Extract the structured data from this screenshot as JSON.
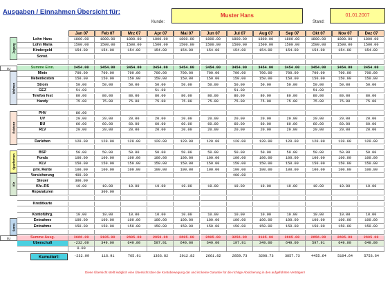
{
  "header": {
    "title": "Ausgaben / Einnahmen Übersicht für:",
    "kunde_label": "Kunde:",
    "kunde_value": "Muster Hans",
    "stand_label": "Stand:",
    "stand_value": "01.01.2007"
  },
  "months": [
    "Jan 07",
    "Feb 07",
    "Mrz 07",
    "Apr 07",
    "Mai 07",
    "Jun 07",
    "Jul 07",
    "Aug 07",
    "Sep 07",
    "Okt 07",
    "Nov 07",
    "Dez 07"
  ],
  "groups": [
    {
      "label": "Zugang",
      "color": "#c6efce",
      "start": 0,
      "count": 4
    },
    {
      "label": "Wohnen",
      "color": "#dbe5f1",
      "start": 6,
      "count": 6
    },
    {
      "label": "Existenz",
      "color": "#fce4d6",
      "start": 13,
      "count": 6
    },
    {
      "label": "Sparformen",
      "color": "#ffff99",
      "start": 20,
      "count": 4
    },
    {
      "label": "Kfz",
      "color": "#d9ead3",
      "start": 24,
      "count": 4
    },
    {
      "label": "Sonst.",
      "color": "#bdd7ee",
      "start": 32,
      "count": 3
    }
  ],
  "side_labels": {
    "su1": "SU",
    "su2": "SU",
    "ueberschuss": "Überschuß",
    "kumuliert": "Kumuliert:"
  },
  "rows": [
    {
      "label": "Lohn Hans",
      "values": [
        "1800.00",
        "1800.00",
        "1800.00",
        "1800.00",
        "1800.00",
        "1800.00",
        "1800.00",
        "1800.00",
        "1800.00",
        "1800.00",
        "1800.00",
        "1800.00"
      ]
    },
    {
      "label": "Lohn Maria",
      "values": [
        "1500.00",
        "1500.00",
        "1500.00",
        "1500.00",
        "1500.00",
        "1500.00",
        "1500.00",
        "1500.00",
        "1500.00",
        "1500.00",
        "1500.00",
        "1500.00"
      ]
    },
    {
      "label": "Kindergeld",
      "values": [
        "154.00",
        "154.00",
        "154.00",
        "154.00",
        "154.00",
        "154.00",
        "154.00",
        "154.00",
        "154.00",
        "154.00",
        "154.00",
        "154.00"
      ]
    },
    {
      "label": "Sonst.",
      "values": [
        "",
        "",
        "",
        "",
        "",
        "",
        "",
        "",
        "",
        "",
        "",
        ""
      ]
    },
    {
      "label": "",
      "values": [
        "",
        "",
        "",
        "",
        "",
        "",
        "",
        "",
        "",
        "",
        "",
        ""
      ]
    },
    {
      "label": "Summe Einn.",
      "kind": "sum-in",
      "values": [
        "3454.00",
        "3454.00",
        "3454.00",
        "3454.00",
        "3454.00",
        "3454.00",
        "3454.00",
        "3454.00",
        "3454.00",
        "3454.00",
        "3454.00",
        "3454.00"
      ]
    },
    {
      "label": "Miete",
      "values": [
        "700.00",
        "700.00",
        "700.00",
        "700.00",
        "700.00",
        "700.00",
        "700.00",
        "700.00",
        "700.00",
        "700.00",
        "700.00",
        "700.00"
      ]
    },
    {
      "label": "Nebenkosten",
      "values": [
        "150.00",
        "150.00",
        "150.00",
        "150.00",
        "150.00",
        "150.00",
        "150.00",
        "150.00",
        "150.00",
        "150.00",
        "150.00",
        "150.00"
      ]
    },
    {
      "label": "Strom",
      "values": [
        "50.00",
        "50.00",
        "50.00",
        "50.00",
        "50.00",
        "50.00",
        "50.00",
        "50.00",
        "50.00",
        "50.00",
        "50.00",
        "50.00"
      ]
    },
    {
      "label": "GEZ",
      "values": [
        "51.09",
        "",
        "",
        "51.09",
        "",
        "",
        "51.09",
        "",
        "",
        "51.09",
        "",
        ""
      ]
    },
    {
      "label": "Telefon fest",
      "values": [
        "80.00",
        "80.00",
        "80.00",
        "80.00",
        "80.00",
        "80.00",
        "80.00",
        "80.00",
        "80.00",
        "80.00",
        "80.00",
        "80.00"
      ]
    },
    {
      "label": "Handy",
      "values": [
        "75.00",
        "75.00",
        "75.00",
        "75.00",
        "75.00",
        "75.00",
        "75.00",
        "75.00",
        "75.00",
        "75.00",
        "75.00",
        "75.00"
      ]
    },
    {
      "label": "",
      "values": [
        "",
        "",
        "",
        "",
        "",
        "",
        "",
        "",
        "",
        "",
        "",
        ""
      ]
    },
    {
      "label": "PHV",
      "values": [
        "80.00",
        "",
        "",
        "",
        "",
        "",
        "",
        "",
        "",
        "",
        "",
        ""
      ]
    },
    {
      "label": "UV",
      "values": [
        "20.00",
        "20.00",
        "20.00",
        "20.00",
        "20.00",
        "20.00",
        "20.00",
        "20.00",
        "20.00",
        "20.00",
        "20.00",
        "20.00"
      ]
    },
    {
      "label": "BU",
      "values": [
        "60.00",
        "60.00",
        "60.00",
        "60.00",
        "60.00",
        "60.00",
        "60.00",
        "60.00",
        "60.00",
        "60.00",
        "60.00",
        "60.00"
      ]
    },
    {
      "label": "RLV",
      "values": [
        "20.00",
        "20.00",
        "20.00",
        "20.00",
        "20.00",
        "20.00",
        "20.00",
        "20.00",
        "20.00",
        "20.00",
        "20.00",
        "20.00"
      ]
    },
    {
      "label": "",
      "values": [
        "",
        "",
        "",
        "",
        "",
        "",
        "",
        "",
        "",
        "",
        "",
        ""
      ]
    },
    {
      "label": "Darlehen",
      "values": [
        "120.00",
        "120.00",
        "120.00",
        "120.00",
        "120.00",
        "120.00",
        "120.00",
        "120.00",
        "120.00",
        "120.00",
        "120.00",
        "120.00"
      ]
    },
    {
      "label": "",
      "values": [
        "",
        "",
        "",
        "",
        "",
        "",
        "",
        "",
        "",
        "",
        "",
        ""
      ]
    },
    {
      "label": "BSP",
      "values": [
        "50.00",
        "50.00",
        "50.00",
        "50.00",
        "50.00",
        "50.00",
        "50.00",
        "50.00",
        "50.00",
        "50.00",
        "50.00",
        "50.00"
      ]
    },
    {
      "label": "Fonds",
      "values": [
        "100.00",
        "100.00",
        "100.00",
        "100.00",
        "100.00",
        "100.00",
        "100.00",
        "100.00",
        "100.00",
        "100.00",
        "100.00",
        "100.00"
      ]
    },
    {
      "label": "KLV",
      "values": [
        "150.00",
        "150.00",
        "150.00",
        "150.00",
        "150.00",
        "150.00",
        "150.00",
        "150.00",
        "150.00",
        "150.00",
        "150.00",
        "150.00"
      ]
    },
    {
      "label": "priv. Rente",
      "values": [
        "100.00",
        "100.00",
        "100.00",
        "100.00",
        "100.00",
        "100.00",
        "100.00",
        "100.00",
        "100.00",
        "100.00",
        "100.00",
        "100.00"
      ]
    },
    {
      "label": "Versicherung",
      "values": [
        "400.00",
        "",
        "",
        "",
        "",
        "",
        "400.00",
        "",
        "",
        "",
        "",
        ""
      ]
    },
    {
      "label": "Steuer",
      "values": [
        "300.00",
        "",
        "",
        "",
        "",
        "",
        "",
        "",
        "",
        "",
        "",
        ""
      ]
    },
    {
      "label": "Kfz.-RS",
      "values": [
        "19.00",
        "19.00",
        "19.00",
        "19.00",
        "19.00",
        "19.00",
        "19.00",
        "19.00",
        "19.00",
        "19.00",
        "19.00",
        "19.00"
      ]
    },
    {
      "label": "Reparaturen",
      "values": [
        "",
        "300.00",
        "",
        "",
        "",
        "",
        "",
        "",
        "",
        "",
        "",
        ""
      ]
    },
    {
      "label": "",
      "values": [
        "",
        "",
        "",
        "",
        "",
        "",
        "",
        "",
        "",
        "",
        "",
        ""
      ]
    },
    {
      "label": "Kreditkarte",
      "values": [
        "",
        "",
        "",
        "",
        "",
        "",
        "",
        "",
        "",
        "",
        "",
        ""
      ]
    },
    {
      "label": "",
      "values": [
        "",
        "",
        "",
        "",
        "",
        "",
        "",
        "",
        "",
        "",
        "",
        ""
      ]
    },
    {
      "label": "Kontoführg.",
      "values": [
        "10.00",
        "10.00",
        "10.00",
        "10.00",
        "10.00",
        "10.00",
        "10.00",
        "10.00",
        "10.00",
        "10.00",
        "10.00",
        "10.00"
      ]
    },
    {
      "label": "Entnahme",
      "values": [
        "100.00",
        "100.00",
        "100.00",
        "100.00",
        "100.00",
        "100.00",
        "100.00",
        "100.00",
        "100.00",
        "100.00",
        "100.00",
        "100.00"
      ]
    },
    {
      "label": "Entnahme",
      "values": [
        "150.00",
        "150.00",
        "150.00",
        "150.00",
        "150.00",
        "150.00",
        "150.00",
        "150.00",
        "150.00",
        "150.00",
        "150.00",
        "150.00"
      ]
    },
    {
      "label": "",
      "values": [
        "",
        "",
        "",
        "",
        "",
        "",
        "",
        "",
        "",
        "",
        "",
        ""
      ]
    },
    {
      "label": "Summe Ausg.",
      "kind": "sum-out",
      "values": [
        "3686.09",
        "3105.00",
        "2805.00",
        "2856.09",
        "2805.00",
        "2805.00",
        "3256.09",
        "3105.00",
        "2805.00",
        "2856.09",
        "2805.00",
        "2805.00"
      ]
    },
    {
      "label": "",
      "kind": "surplus",
      "values": [
        "-232.09",
        "349.00",
        "649.00",
        "597.91",
        "649.00",
        "649.00",
        "197.91",
        "349.00",
        "649.00",
        "597.91",
        "649.00",
        "649.00"
      ]
    },
    {
      "label": "",
      "kind": "blank",
      "values": [
        "0.00",
        "",
        "",
        "",
        "",
        "",
        "",
        "",
        "",
        "",
        "",
        ""
      ]
    },
    {
      "label": "",
      "kind": "kum",
      "values": [
        "-232.09",
        "116.91",
        "765.91",
        "1363.82",
        "2012.82",
        "2661.82",
        "2859.73",
        "3208.73",
        "3857.73",
        "4455.64",
        "5104.64",
        "5753.64"
      ]
    }
  ],
  "footer_text": "Diese Übersicht stellt lediglich eine Übersicht über die Kontobewegung dar und ist keine Garantie für die richtige Absicherung in den aufgeführten Verträgen!",
  "colors": {
    "sum_in": "#c6efce",
    "sum_out": "#ffc7ce",
    "sum_out_text": "#e03030",
    "kum": "#4ad0e0",
    "surplus": "#e2efda"
  }
}
